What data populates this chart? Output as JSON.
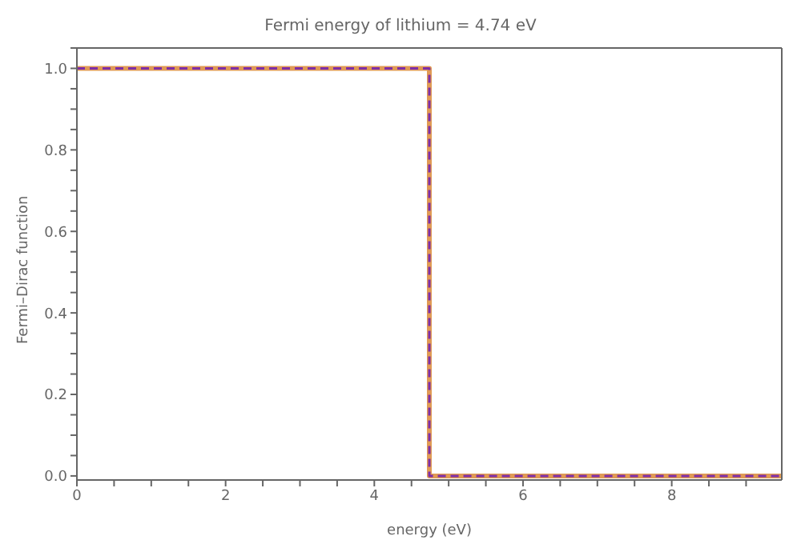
{
  "chart_data": {
    "type": "step",
    "title": "Fermi energy of lithium = 4.74 eV",
    "xlabel": "energy (eV)",
    "ylabel": "Fermi–Dirac function",
    "x": [
      0,
      4.74,
      9.48
    ],
    "series": [
      {
        "color": "#e09a55",
        "values": [
          1,
          0,
          0
        ],
        "line_style": "solid"
      },
      {
        "color": "#7e2ea8",
        "values": [
          1,
          0,
          0
        ],
        "line_style": "dashed"
      }
    ],
    "xlim": [
      0,
      9.48
    ],
    "ylim": [
      -0.01,
      1.05
    ],
    "xticks": [
      0,
      {
        "value": 0.5,
        "label": null
      },
      {
        "value": 1,
        "label": null
      },
      {
        "value": 1.5,
        "label": null
      },
      2,
      {
        "value": 2.5,
        "label": null
      },
      {
        "value": 3,
        "label": null
      },
      {
        "value": 3.5,
        "label": null
      },
      4,
      {
        "value": 4.5,
        "label": null
      },
      {
        "value": 5,
        "label": null
      },
      {
        "value": 5.5,
        "label": null
      },
      6,
      {
        "value": 6.5,
        "label": null
      },
      {
        "value": 7,
        "label": null
      },
      {
        "value": 7.5,
        "label": null
      },
      8,
      {
        "value": 8.5,
        "label": null
      },
      {
        "value": 9,
        "label": null
      }
    ],
    "yticks": [
      {
        "value": 0,
        "label": "0.0"
      },
      {
        "value": 0.05,
        "label": null
      },
      {
        "value": 0.1,
        "label": null
      },
      {
        "value": 0.15,
        "label": null
      },
      {
        "value": 0.2,
        "label": "0.2"
      },
      {
        "value": 0.25,
        "label": null
      },
      {
        "value": 0.3,
        "label": null
      },
      {
        "value": 0.35,
        "label": null
      },
      {
        "value": 0.4,
        "label": "0.4"
      },
      {
        "value": 0.45,
        "label": null
      },
      {
        "value": 0.5,
        "label": null
      },
      {
        "value": 0.55,
        "label": null
      },
      {
        "value": 0.6,
        "label": "0.6"
      },
      {
        "value": 0.65,
        "label": null
      },
      {
        "value": 0.7,
        "label": null
      },
      {
        "value": 0.75,
        "label": null
      },
      {
        "value": 0.8,
        "label": "0.8"
      },
      {
        "value": 0.85,
        "label": null
      },
      {
        "value": 0.9,
        "label": null
      },
      {
        "value": 0.95,
        "label": null
      },
      {
        "value": 1,
        "label": "1.0"
      },
      {
        "value": 1.05,
        "label": null
      }
    ],
    "legend": false,
    "marker": "none"
  }
}
